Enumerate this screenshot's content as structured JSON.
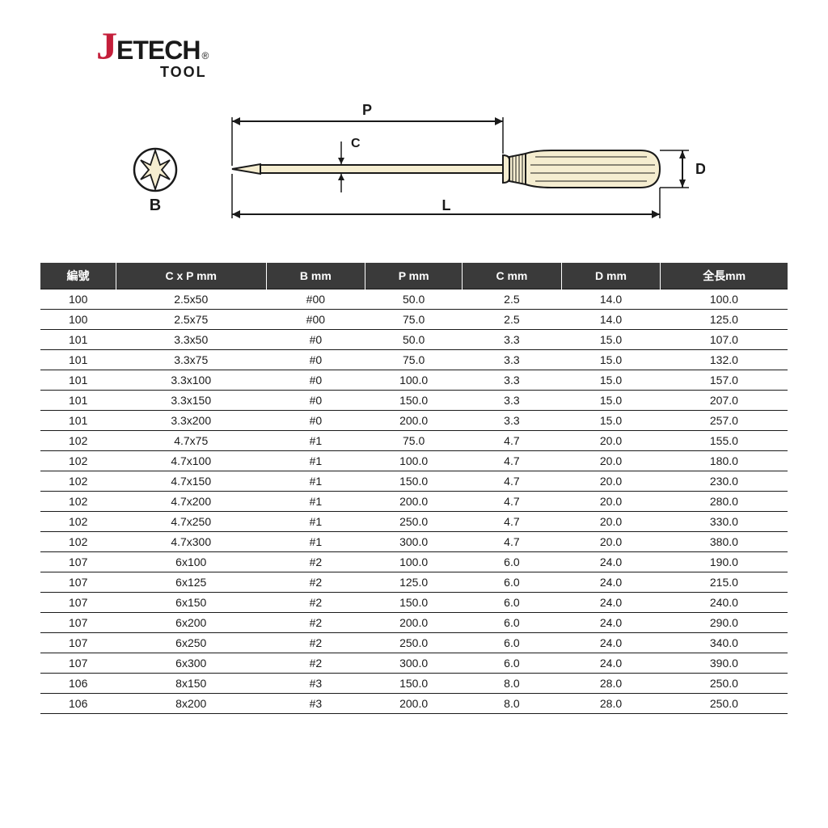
{
  "logo": {
    "j_text": "J",
    "etech_text": "ETECH",
    "reg_text": "®",
    "tool_text": "TOOL",
    "j_color": "#c41e3a",
    "text_color": "#1a1a1a"
  },
  "diagram": {
    "stroke_color": "#1a1a1a",
    "fill_color": "#f5edd0",
    "labels": {
      "B": "B",
      "P": "P",
      "C": "C",
      "L": "L",
      "D": "D"
    }
  },
  "table": {
    "header_bg": "#3a3a3a",
    "header_fg": "#ffffff",
    "border_color": "#1a1a1a",
    "columns": [
      "編號",
      "C x P mm",
      "B mm",
      "P mm",
      "C mm",
      "D mm",
      "全長mm"
    ],
    "rows": [
      [
        "100",
        "2.5x50",
        "#00",
        "50.0",
        "2.5",
        "14.0",
        "100.0"
      ],
      [
        "100",
        "2.5x75",
        "#00",
        "75.0",
        "2.5",
        "14.0",
        "125.0"
      ],
      [
        "101",
        "3.3x50",
        "#0",
        "50.0",
        "3.3",
        "15.0",
        "107.0"
      ],
      [
        "101",
        "3.3x75",
        "#0",
        "75.0",
        "3.3",
        "15.0",
        "132.0"
      ],
      [
        "101",
        "3.3x100",
        "#0",
        "100.0",
        "3.3",
        "15.0",
        "157.0"
      ],
      [
        "101",
        "3.3x150",
        "#0",
        "150.0",
        "3.3",
        "15.0",
        "207.0"
      ],
      [
        "101",
        "3.3x200",
        "#0",
        "200.0",
        "3.3",
        "15.0",
        "257.0"
      ],
      [
        "102",
        "4.7x75",
        "#1",
        "75.0",
        "4.7",
        "20.0",
        "155.0"
      ],
      [
        "102",
        "4.7x100",
        "#1",
        "100.0",
        "4.7",
        "20.0",
        "180.0"
      ],
      [
        "102",
        "4.7x150",
        "#1",
        "150.0",
        "4.7",
        "20.0",
        "230.0"
      ],
      [
        "102",
        "4.7x200",
        "#1",
        "200.0",
        "4.7",
        "20.0",
        "280.0"
      ],
      [
        "102",
        "4.7x250",
        "#1",
        "250.0",
        "4.7",
        "20.0",
        "330.0"
      ],
      [
        "102",
        "4.7x300",
        "#1",
        "300.0",
        "4.7",
        "20.0",
        "380.0"
      ],
      [
        "107",
        "6x100",
        "#2",
        "100.0",
        "6.0",
        "24.0",
        "190.0"
      ],
      [
        "107",
        "6x125",
        "#2",
        "125.0",
        "6.0",
        "24.0",
        "215.0"
      ],
      [
        "107",
        "6x150",
        "#2",
        "150.0",
        "6.0",
        "24.0",
        "240.0"
      ],
      [
        "107",
        "6x200",
        "#2",
        "200.0",
        "6.0",
        "24.0",
        "290.0"
      ],
      [
        "107",
        "6x250",
        "#2",
        "250.0",
        "6.0",
        "24.0",
        "340.0"
      ],
      [
        "107",
        "6x300",
        "#2",
        "300.0",
        "6.0",
        "24.0",
        "390.0"
      ],
      [
        "106",
        "8x150",
        "#3",
        "150.0",
        "8.0",
        "28.0",
        "250.0"
      ],
      [
        "106",
        "8x200",
        "#3",
        "200.0",
        "8.0",
        "28.0",
        "250.0"
      ]
    ]
  }
}
